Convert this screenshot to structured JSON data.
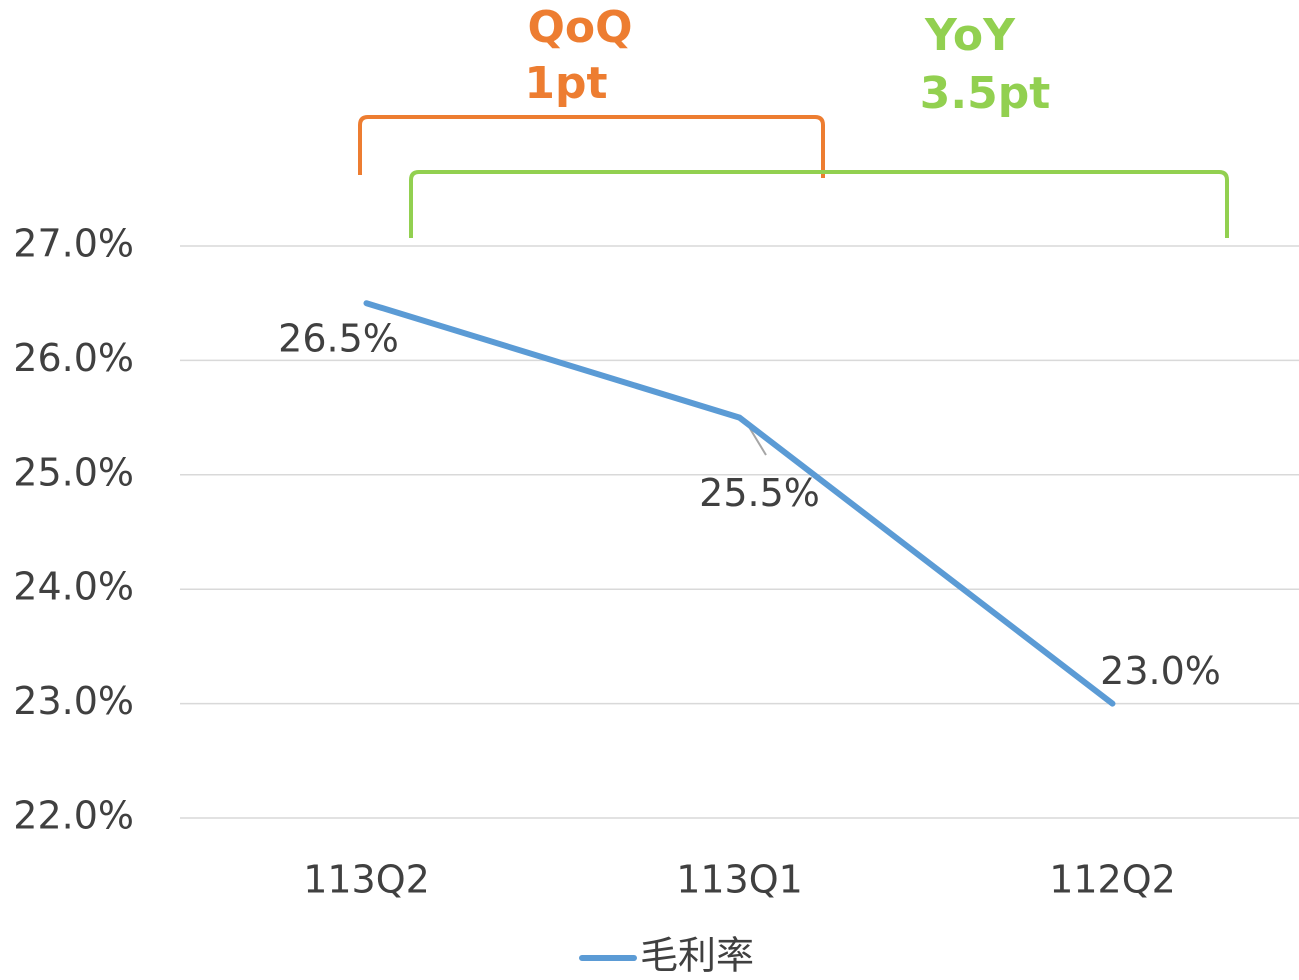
{
  "chart_data": {
    "type": "line",
    "categories": [
      "113Q2",
      "113Q1",
      "112Q2"
    ],
    "series": [
      {
        "name": "毛利率",
        "color": "#5b9bd5",
        "values": [
          26.5,
          25.5,
          23.0
        ],
        "value_labels": [
          "26.5%",
          "25.5%",
          "23.0%"
        ]
      }
    ],
    "ylim": [
      22,
      27
    ],
    "yticks": [
      {
        "value": 22,
        "label": "22.0%"
      },
      {
        "value": 23,
        "label": "23.0%"
      },
      {
        "value": 24,
        "label": "24.0%"
      },
      {
        "value": 25,
        "label": "25.0%"
      },
      {
        "value": 26,
        "label": "26.0%"
      },
      {
        "value": 27,
        "label": "27.0%"
      }
    ],
    "grid": true,
    "legend": "bottom",
    "annotations": [
      {
        "text": "QoQ",
        "color": "#ed7d31"
      },
      {
        "text": "1pt",
        "color": "#ed7d31"
      },
      {
        "text": "YoY",
        "color": "#92d050"
      },
      {
        "text": "3.5pt",
        "color": "#92d050"
      }
    ]
  }
}
